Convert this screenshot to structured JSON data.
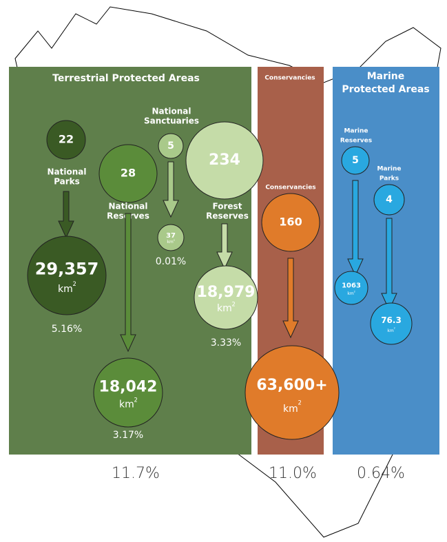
{
  "panels": [
    {
      "title": [
        "Terrestrial Protected Areas"
      ],
      "total": "11.7%",
      "groups": [
        {
          "label": [
            "National",
            "Parks"
          ],
          "count": "22",
          "area": "29,357",
          "share": "5.16%"
        },
        {
          "label": [
            "National",
            "Reserves"
          ],
          "count": "28",
          "area": "18,042",
          "share": "3.17%"
        },
        {
          "label": [
            "National",
            "Sanctuaries"
          ],
          "count": "5",
          "area": "37",
          "share": "0.01%"
        },
        {
          "label": [
            "Forest",
            "Reserves"
          ],
          "count": "234",
          "area": "18,979",
          "share": "3.33%"
        }
      ]
    },
    {
      "title": [
        "Conservancies"
      ],
      "total": "11.0%",
      "groups": [
        {
          "label": [
            "Conservancies"
          ],
          "count": "160",
          "area": "63,600+"
        }
      ]
    },
    {
      "title": [
        "Marine",
        "Protected Areas"
      ],
      "total": "0.64%",
      "groups": [
        {
          "label": [
            "Marine",
            "Reserves"
          ],
          "count": "5",
          "area": "1063"
        },
        {
          "label": [
            "Marine",
            "Parks"
          ],
          "count": "4",
          "area": "76.3"
        }
      ]
    }
  ],
  "unit": "km",
  "unit_power": "2"
}
